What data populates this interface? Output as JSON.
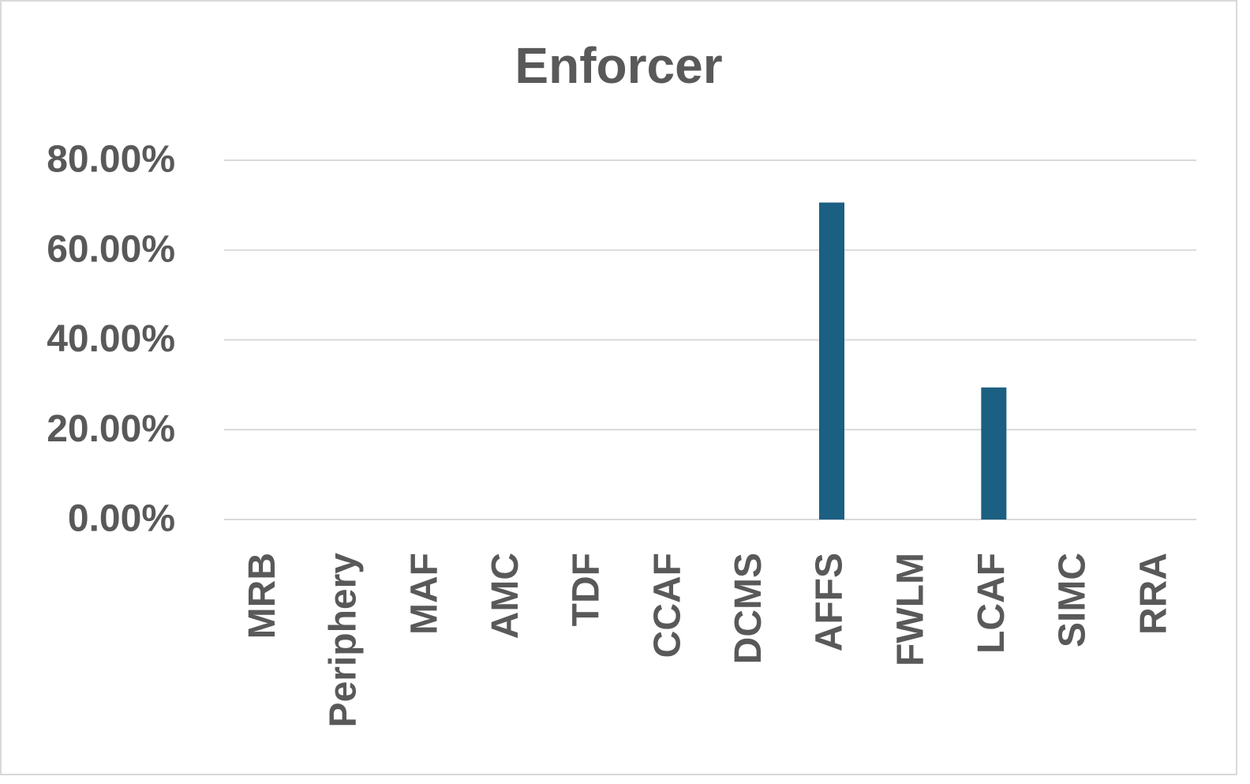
{
  "chart_data": {
    "type": "bar",
    "title": "Enforcer",
    "categories": [
      "MRB",
      "Periphery",
      "MAF",
      "AMC",
      "TDF",
      "CCAF",
      "DCMS",
      "AFFS",
      "FWLM",
      "LCAF",
      "SIMC",
      "RRA"
    ],
    "values": [
      0,
      0,
      0,
      0,
      0,
      0,
      0,
      70.59,
      0,
      29.41,
      0,
      0
    ],
    "color": "#1b5f82",
    "ylim": [
      0,
      80
    ],
    "yticks": [
      {
        "value": 0,
        "label": "0.00%"
      },
      {
        "value": 20,
        "label": "20.00%"
      },
      {
        "value": 40,
        "label": "40.00%"
      },
      {
        "value": 60,
        "label": "60.00%"
      },
      {
        "value": 80,
        "label": "80.00%"
      }
    ],
    "grid": true
  }
}
